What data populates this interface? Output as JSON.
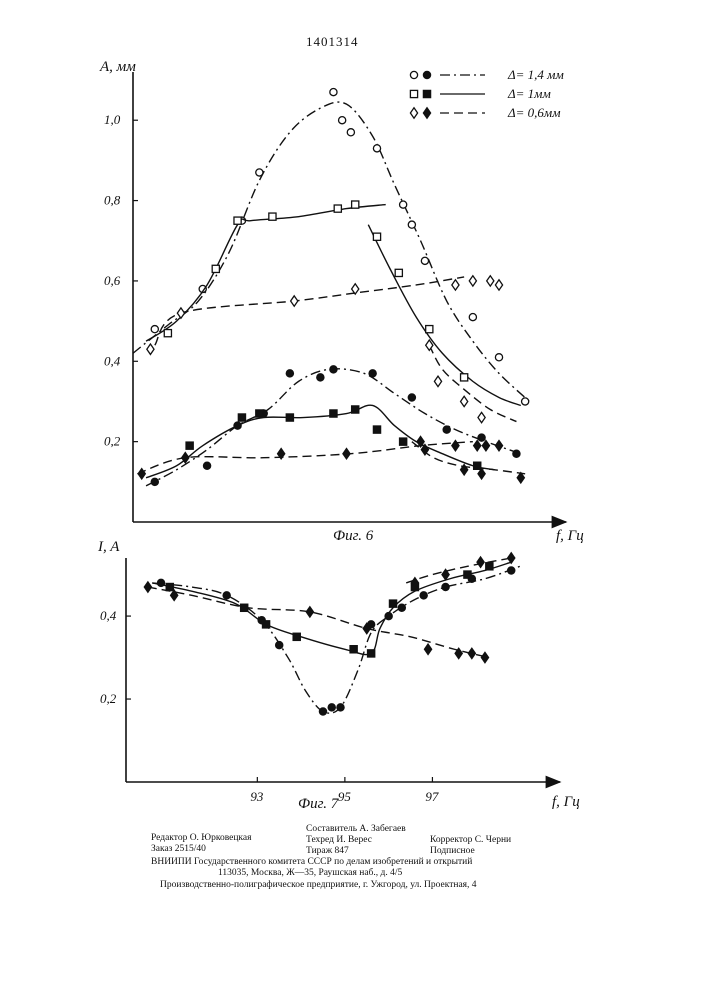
{
  "header": {
    "patent_number": "1401314"
  },
  "chart_data": [
    {
      "type": "line",
      "caption": "Фиг. 6",
      "xlabel": "f, Гц",
      "ylabel": "A, мм",
      "xlim": [
        90.0,
        99.8
      ],
      "ylim": [
        0.0,
        1.12
      ],
      "yticks": [
        "0,2",
        "0,4",
        "0,6",
        "0,8",
        "1,0"
      ],
      "ytick_values": [
        0.2,
        0.4,
        0.6,
        0.8,
        1.0
      ],
      "legend": [
        {
          "marks": "○ ●",
          "label": "Δ= 1,4 мм"
        },
        {
          "marks": "□ ■",
          "label": "Δ= 1мм"
        },
        {
          "marks": "◇ ◆",
          "label": "Δ= 0,6мм"
        }
      ],
      "series": [
        {
          "marker": "circle-open",
          "style": "dashdot",
          "points": [
            [
              90.5,
              0.48
            ],
            [
              91.6,
              0.58
            ],
            [
              92.5,
              0.75
            ],
            [
              92.9,
              0.87
            ],
            [
              94.6,
              1.07
            ],
            [
              94.8,
              1.0
            ],
            [
              95.0,
              0.97
            ],
            [
              95.6,
              0.93
            ],
            [
              96.2,
              0.79
            ],
            [
              96.4,
              0.74
            ],
            [
              96.7,
              0.65
            ],
            [
              97.8,
              0.51
            ],
            [
              98.4,
              0.41
            ],
            [
              99.0,
              0.3
            ]
          ],
          "curve": [
            [
              90.0,
              0.42
            ],
            [
              90.8,
              0.49
            ],
            [
              91.5,
              0.55
            ],
            [
              92.2,
              0.67
            ],
            [
              92.9,
              0.85
            ],
            [
              93.6,
              0.97
            ],
            [
              94.3,
              1.03
            ],
            [
              94.9,
              1.04
            ],
            [
              95.5,
              0.96
            ],
            [
              96.0,
              0.84
            ],
            [
              96.6,
              0.7
            ],
            [
              97.2,
              0.55
            ],
            [
              97.8,
              0.45
            ],
            [
              98.4,
              0.37
            ],
            [
              99.1,
              0.3
            ]
          ]
        },
        {
          "marker": "square-open",
          "style": "solid",
          "points": [
            [
              90.8,
              0.47
            ],
            [
              91.9,
              0.63
            ],
            [
              92.4,
              0.75
            ],
            [
              93.2,
              0.76
            ],
            [
              94.7,
              0.78
            ],
            [
              95.1,
              0.79
            ],
            [
              95.6,
              0.71
            ],
            [
              96.1,
              0.62
            ],
            [
              96.8,
              0.48
            ],
            [
              97.6,
              0.36
            ]
          ],
          "curve": [
            [
              90.3,
              0.45
            ],
            [
              91.0,
              0.5
            ],
            [
              91.7,
              0.59
            ],
            [
              92.4,
              0.74
            ],
            [
              92.7,
              0.75
            ],
            [
              93.8,
              0.76
            ],
            [
              94.9,
              0.78
            ],
            [
              95.8,
              0.79
            ]
          ],
          "curve2": [
            [
              95.4,
              0.74
            ],
            [
              95.9,
              0.63
            ],
            [
              96.5,
              0.51
            ],
            [
              97.1,
              0.42
            ],
            [
              97.8,
              0.35
            ],
            [
              98.4,
              0.31
            ],
            [
              98.9,
              0.29
            ]
          ]
        },
        {
          "marker": "diamond-open",
          "style": "dash",
          "points": [
            [
              90.4,
              0.43
            ],
            [
              91.1,
              0.52
            ],
            [
              93.7,
              0.55
            ],
            [
              95.1,
              0.58
            ],
            [
              97.4,
              0.59
            ],
            [
              97.8,
              0.6
            ],
            [
              98.2,
              0.6
            ],
            [
              98.4,
              0.59
            ],
            [
              96.8,
              0.44
            ],
            [
              97.0,
              0.35
            ],
            [
              97.6,
              0.3
            ],
            [
              98.0,
              0.26
            ]
          ],
          "curve": [
            [
              90.5,
              0.44
            ],
            [
              91.1,
              0.52
            ],
            [
              93.7,
              0.55
            ],
            [
              95.1,
              0.57
            ],
            [
              96.5,
              0.59
            ],
            [
              97.6,
              0.61
            ]
          ],
          "curve2": [
            [
              96.8,
              0.44
            ],
            [
              97.1,
              0.38
            ],
            [
              97.6,
              0.33
            ],
            [
              98.2,
              0.28
            ],
            [
              98.8,
              0.25
            ]
          ]
        },
        {
          "marker": "circle-filled",
          "style": "dashdot",
          "points": [
            [
              90.5,
              0.1
            ],
            [
              91.7,
              0.14
            ],
            [
              92.4,
              0.24
            ],
            [
              93.0,
              0.27
            ],
            [
              93.6,
              0.37
            ],
            [
              94.3,
              0.36
            ],
            [
              94.6,
              0.38
            ],
            [
              95.5,
              0.37
            ],
            [
              96.4,
              0.31
            ],
            [
              97.2,
              0.23
            ],
            [
              98.0,
              0.21
            ],
            [
              98.8,
              0.17
            ]
          ],
          "curve": [
            [
              90.3,
              0.09
            ],
            [
              91.0,
              0.13
            ],
            [
              91.7,
              0.18
            ],
            [
              92.4,
              0.24
            ],
            [
              93.1,
              0.28
            ],
            [
              93.8,
              0.35
            ],
            [
              94.5,
              0.38
            ],
            [
              95.3,
              0.37
            ],
            [
              96.0,
              0.32
            ],
            [
              96.7,
              0.27
            ],
            [
              97.4,
              0.23
            ],
            [
              98.1,
              0.2
            ],
            [
              98.9,
              0.17
            ]
          ]
        },
        {
          "marker": "square-filled",
          "style": "solid",
          "points": [
            [
              91.3,
              0.19
            ],
            [
              92.5,
              0.26
            ],
            [
              92.9,
              0.27
            ],
            [
              93.6,
              0.26
            ],
            [
              94.6,
              0.27
            ],
            [
              95.1,
              0.28
            ],
            [
              95.6,
              0.23
            ],
            [
              96.2,
              0.2
            ],
            [
              97.9,
              0.14
            ]
          ],
          "curve": [
            [
              90.3,
              0.11
            ],
            [
              91.0,
              0.14
            ],
            [
              91.6,
              0.19
            ],
            [
              92.4,
              0.24
            ],
            [
              93.0,
              0.26
            ],
            [
              93.9,
              0.26
            ],
            [
              94.9,
              0.27
            ],
            [
              95.5,
              0.29
            ],
            [
              96.0,
              0.24
            ],
            [
              96.5,
              0.2
            ],
            [
              97.1,
              0.17
            ],
            [
              97.8,
              0.14
            ],
            [
              98.3,
              0.13
            ]
          ]
        },
        {
          "marker": "diamond-filled",
          "style": "dash",
          "points": [
            [
              90.2,
              0.12
            ],
            [
              91.2,
              0.16
            ],
            [
              93.4,
              0.17
            ],
            [
              94.9,
              0.17
            ],
            [
              96.7,
              0.18
            ],
            [
              97.4,
              0.19
            ],
            [
              97.9,
              0.19
            ],
            [
              98.1,
              0.19
            ],
            [
              98.4,
              0.19
            ],
            [
              96.6,
              0.2
            ],
            [
              97.6,
              0.13
            ],
            [
              98.0,
              0.12
            ],
            [
              98.9,
              0.11
            ]
          ],
          "curve": [
            [
              90.1,
              0.12
            ],
            [
              91.2,
              0.16
            ],
            [
              93.0,
              0.16
            ],
            [
              95.0,
              0.17
            ],
            [
              96.6,
              0.19
            ],
            [
              97.8,
              0.2
            ]
          ],
          "curve2": [
            [
              96.4,
              0.2
            ],
            [
              96.9,
              0.16
            ],
            [
              97.5,
              0.14
            ],
            [
              98.3,
              0.13
            ],
            [
              99.0,
              0.12
            ]
          ]
        }
      ]
    },
    {
      "type": "line",
      "caption": "Фиг. 7",
      "xlabel": "f, Гц",
      "ylabel": "I, A",
      "xlim": [
        90.0,
        99.8
      ],
      "ylim": [
        0.0,
        0.54
      ],
      "xticks": [
        "93",
        "95",
        "97"
      ],
      "xtick_values": [
        93,
        95,
        97
      ],
      "yticks": [
        "0,2",
        "0,4"
      ],
      "ytick_values": [
        0.2,
        0.4
      ],
      "series": [
        {
          "marker": "circle-filled",
          "style": "dashdot",
          "points": [
            [
              90.8,
              0.48
            ],
            [
              92.3,
              0.45
            ],
            [
              93.1,
              0.39
            ],
            [
              93.5,
              0.33
            ],
            [
              94.5,
              0.17
            ],
            [
              94.7,
              0.18
            ],
            [
              94.9,
              0.18
            ],
            [
              95.6,
              0.38
            ],
            [
              96.0,
              0.4
            ],
            [
              96.3,
              0.42
            ],
            [
              96.8,
              0.45
            ],
            [
              97.3,
              0.47
            ],
            [
              97.9,
              0.49
            ],
            [
              98.8,
              0.51
            ]
          ],
          "curve": [
            [
              90.6,
              0.48
            ],
            [
              91.5,
              0.47
            ],
            [
              92.3,
              0.45
            ],
            [
              93.1,
              0.39
            ],
            [
              93.7,
              0.3
            ],
            [
              94.1,
              0.22
            ],
            [
              94.5,
              0.17
            ],
            [
              94.9,
              0.18
            ],
            [
              95.3,
              0.27
            ],
            [
              95.6,
              0.36
            ],
            [
              96.0,
              0.4
            ],
            [
              96.6,
              0.44
            ],
            [
              97.3,
              0.47
            ],
            [
              98.2,
              0.49
            ],
            [
              99.0,
              0.52
            ]
          ]
        },
        {
          "marker": "square-filled",
          "style": "solid",
          "points": [
            [
              91.0,
              0.47
            ],
            [
              92.7,
              0.42
            ],
            [
              93.2,
              0.38
            ],
            [
              93.9,
              0.35
            ],
            [
              95.2,
              0.32
            ],
            [
              95.6,
              0.31
            ],
            [
              96.1,
              0.43
            ],
            [
              96.6,
              0.47
            ],
            [
              97.8,
              0.5
            ],
            [
              98.3,
              0.52
            ]
          ],
          "curve": [
            [
              90.6,
              0.48
            ],
            [
              91.5,
              0.46
            ],
            [
              92.5,
              0.43
            ],
            [
              93.2,
              0.38
            ],
            [
              94.0,
              0.35
            ],
            [
              95.0,
              0.32
            ],
            [
              95.6,
              0.31
            ],
            [
              95.8,
              0.37
            ],
            [
              96.1,
              0.42
            ],
            [
              96.6,
              0.46
            ],
            [
              97.4,
              0.49
            ],
            [
              98.2,
              0.51
            ],
            [
              98.8,
              0.53
            ]
          ]
        },
        {
          "marker": "diamond-filled",
          "style": "dash",
          "points": [
            [
              90.5,
              0.47
            ],
            [
              91.1,
              0.45
            ],
            [
              94.2,
              0.41
            ],
            [
              95.5,
              0.37
            ],
            [
              96.6,
              0.48
            ],
            [
              97.3,
              0.5
            ],
            [
              98.1,
              0.53
            ],
            [
              98.8,
              0.54
            ],
            [
              96.9,
              0.32
            ],
            [
              97.6,
              0.31
            ],
            [
              97.9,
              0.31
            ],
            [
              98.2,
              0.3
            ]
          ],
          "curve": [
            [
              90.5,
              0.47
            ],
            [
              91.5,
              0.45
            ],
            [
              92.8,
              0.42
            ],
            [
              94.2,
              0.41
            ],
            [
              95.5,
              0.37
            ],
            [
              96.5,
              0.35
            ],
            [
              97.5,
              0.32
            ],
            [
              98.3,
              0.3
            ]
          ],
          "curve2": [
            [
              96.4,
              0.48
            ],
            [
              97.0,
              0.5
            ],
            [
              97.8,
              0.52
            ],
            [
              98.8,
              0.54
            ]
          ]
        }
      ]
    }
  ],
  "imprint": {
    "editor": "Редактор О. Юрковецкая",
    "order": "Заказ 2515/40",
    "compiler": "Составитель А. Забегаев",
    "techred": "Техред И. Верес",
    "circulation": "Тираж 847",
    "corrector": "Корректор С. Черни",
    "subscription": "Подписное",
    "org": "ВНИИПИ Государственного комитета СССР по делам изобретений и открытий",
    "address": "113035, Москва, Ж—35, Раушская наб., д. 4/5",
    "printer": "Производственно-полиграфическое предприятие, г. Ужгород, ул. Проектная, 4"
  }
}
